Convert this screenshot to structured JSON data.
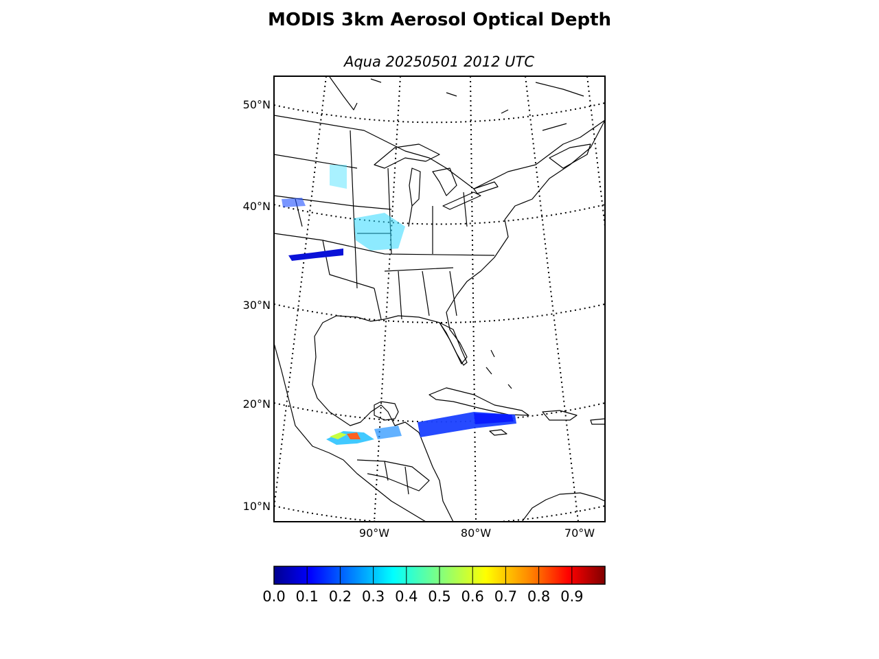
{
  "title": "MODIS 3km Aerosol Optical Depth",
  "subtitle": "Aqua 20250501 2012 UTC",
  "map": {
    "latitude_labels": [
      "50°N",
      "40°N",
      "30°N",
      "20°N",
      "10°N"
    ],
    "longitude_labels": [
      "90°W",
      "80°W",
      "70°W"
    ],
    "graticule_style": "dotted",
    "coastline_color": "#000000"
  },
  "colorbar": {
    "colormap": "jet",
    "range": [
      0.0,
      1.0
    ],
    "tick_labels": [
      "0.0",
      "0.1",
      "0.2",
      "0.3",
      "0.4",
      "0.5",
      "0.6",
      "0.7",
      "0.8",
      "0.9"
    ],
    "colors": [
      "#00008f",
      "#0000ff",
      "#0080ff",
      "#00ffff",
      "#80ff80",
      "#ffff00",
      "#ff8000",
      "#ff0000",
      "#800000"
    ]
  }
}
